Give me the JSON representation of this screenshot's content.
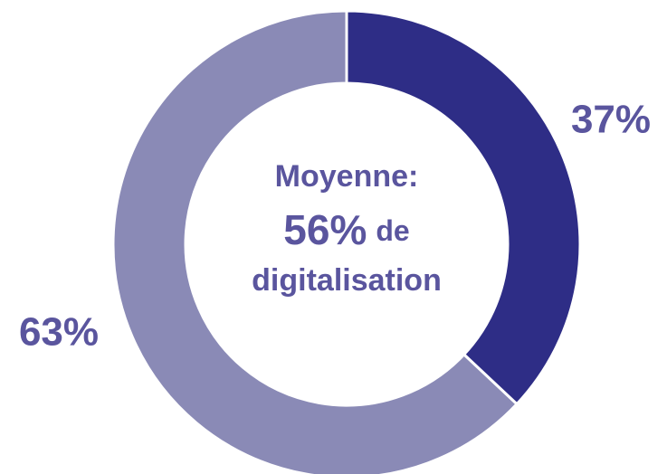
{
  "chart_data": {
    "type": "donut",
    "values": [
      37,
      63
    ],
    "value_labels": [
      "37%",
      "63%"
    ],
    "colors": [
      "#2e2d86",
      "#8a8ab6"
    ],
    "annotations": [
      "Moyenne:",
      "56%",
      "de",
      "digitalisation"
    ]
  }
}
